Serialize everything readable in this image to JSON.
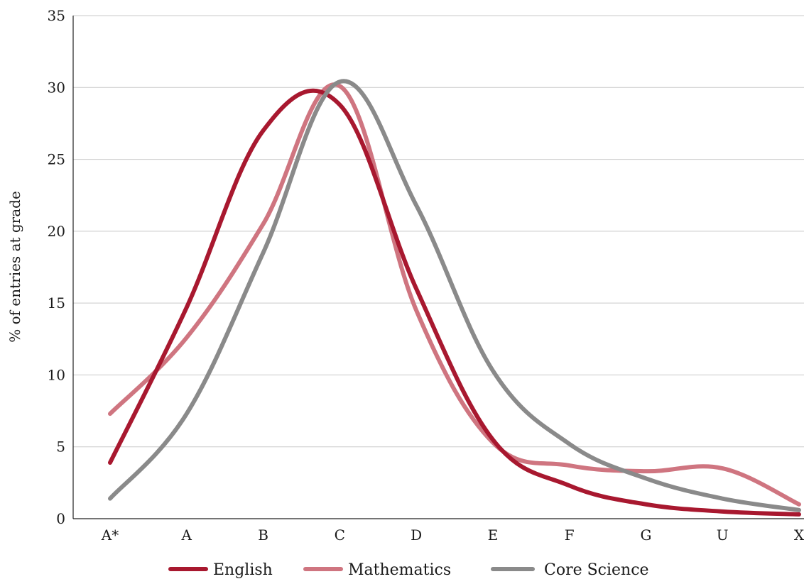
{
  "chart_data": {
    "type": "line",
    "ylabel": "% of entries at grade",
    "xlabel": "",
    "title": "",
    "categories": [
      "A*",
      "A",
      "B",
      "C",
      "D",
      "E",
      "F",
      "G",
      "U",
      "X"
    ],
    "ylim": [
      0,
      35
    ],
    "yticks": [
      0,
      5,
      10,
      15,
      20,
      25,
      30,
      35
    ],
    "grid": true,
    "legend_position": "bottom",
    "series": [
      {
        "name": "English",
        "color": "#a8182f",
        "values": [
          3.9,
          14.7,
          27.0,
          28.8,
          16.0,
          5.5,
          2.3,
          1.0,
          0.5,
          0.3
        ]
      },
      {
        "name": "Mathematics",
        "color": "#cf7580",
        "values": [
          7.3,
          12.6,
          20.5,
          30.1,
          14.5,
          5.3,
          3.7,
          3.3,
          3.5,
          1.0
        ]
      },
      {
        "name": "Core Science",
        "color": "#8a8a8a",
        "values": [
          1.4,
          7.3,
          18.5,
          30.4,
          21.8,
          10.3,
          5.2,
          2.8,
          1.4,
          0.6
        ]
      }
    ]
  }
}
